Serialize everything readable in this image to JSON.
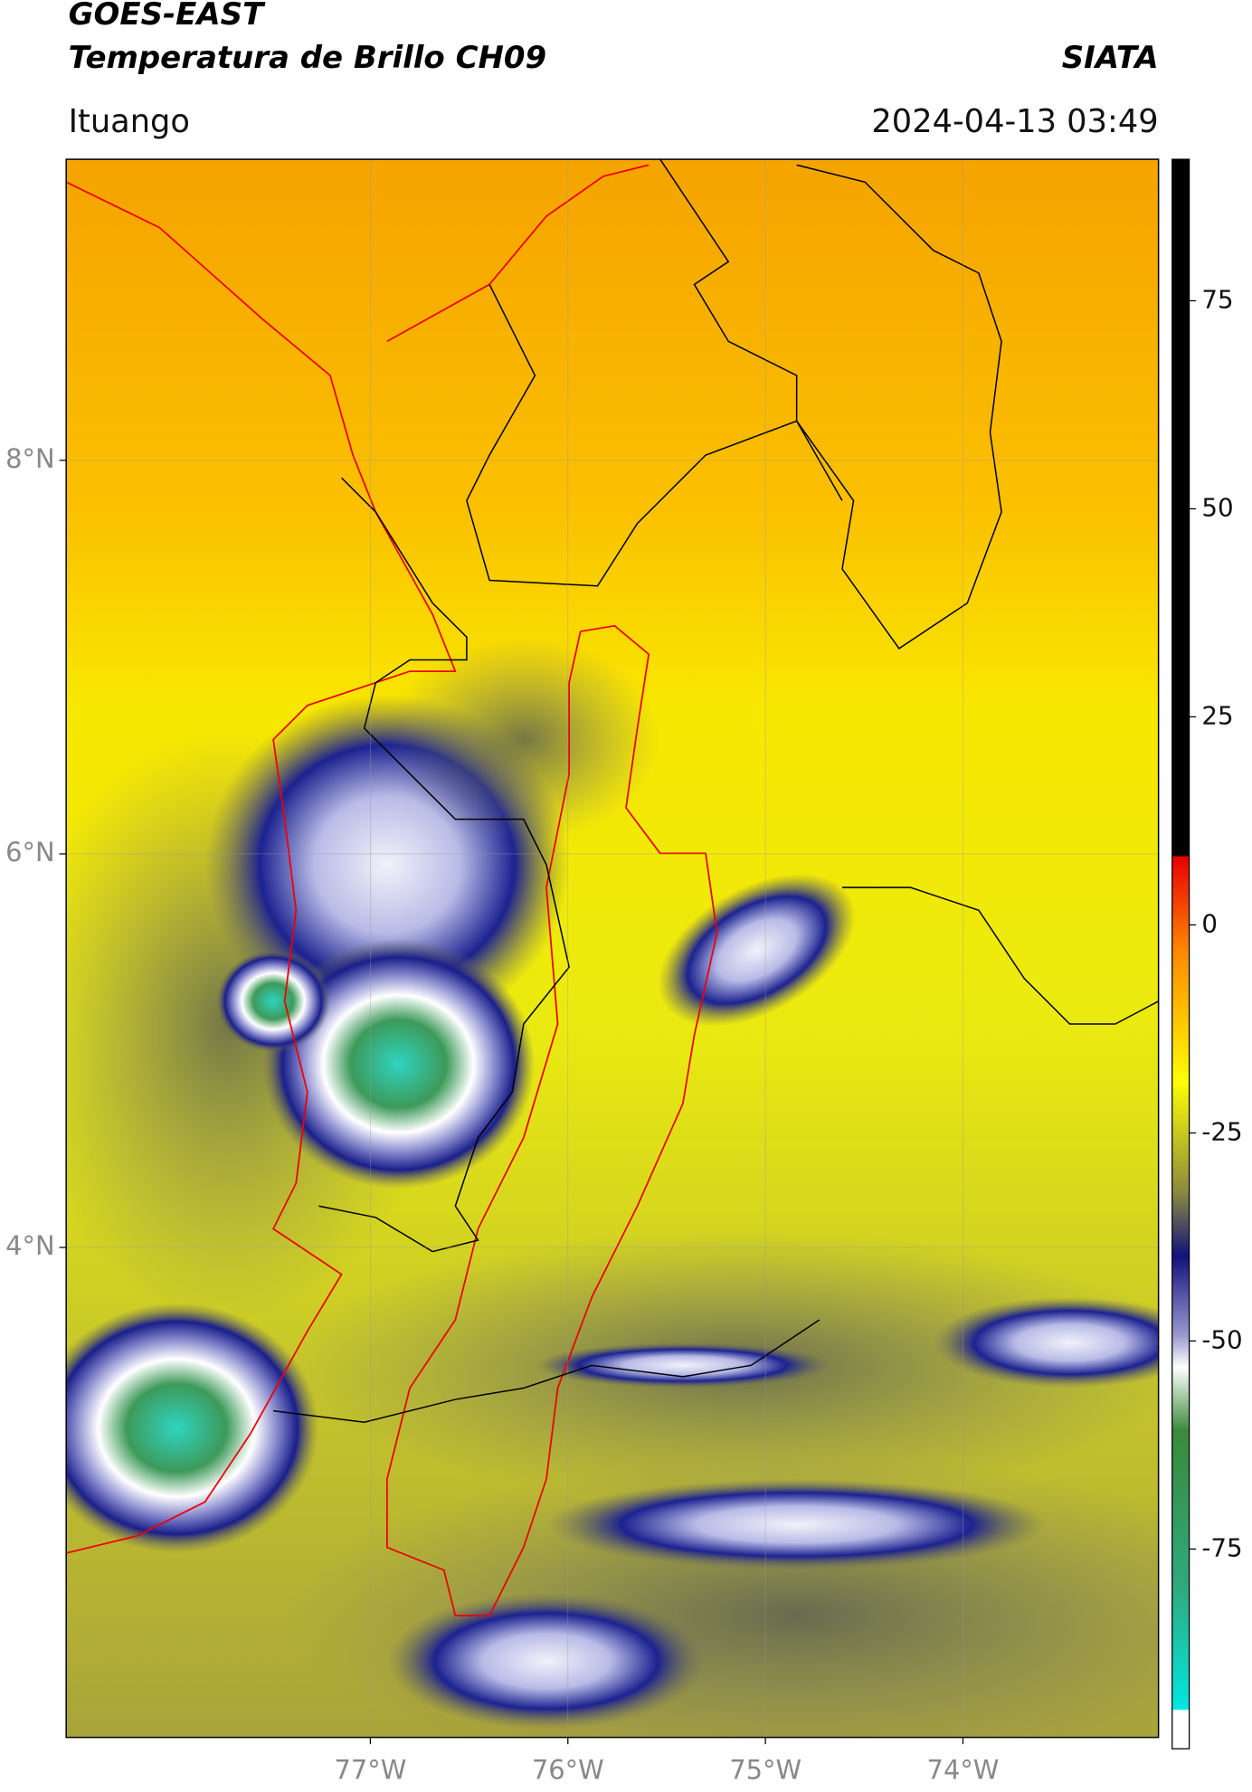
{
  "header": {
    "title": "GOES-EAST",
    "subtitle": "Temperatura de Brillo CH09",
    "source": "SIATA",
    "location": "Ituango",
    "datetime": "2024-04-13 03:49"
  },
  "map": {
    "lonlim": [
      -78.54,
      -73.01
    ],
    "latlim": [
      1.51,
      9.53
    ],
    "lon_ticks": [
      {
        "value": -77,
        "label": "77°W"
      },
      {
        "value": -76,
        "label": "76°W"
      },
      {
        "value": -75,
        "label": "75°W"
      },
      {
        "value": -74,
        "label": "74°W"
      }
    ],
    "lat_ticks": [
      {
        "value": 8,
        "label": "8°N"
      },
      {
        "value": 6,
        "label": "6°N"
      },
      {
        "value": 4,
        "label": "4°N"
      }
    ]
  },
  "colorbar": {
    "range": [
      -99,
      92
    ],
    "ticks": [
      75,
      50,
      25,
      0,
      -25,
      -50,
      -75
    ]
  }
}
